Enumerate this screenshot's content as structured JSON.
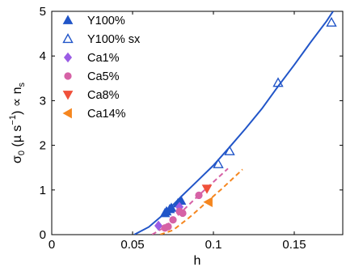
{
  "chart_data": {
    "type": "scatter",
    "xlabel": "h",
    "ylabel_parts": {
      "sigma": "σ",
      "sub0": "0",
      "open": " (µ s",
      "supneg": "−1",
      "close": ") ∝ n",
      "subs": "s"
    },
    "xlim": [
      0,
      0.18
    ],
    "ylim": [
      0,
      5
    ],
    "x_ticks": [
      0,
      0.05,
      0.1,
      0.15
    ],
    "x_tick_labels": [
      "0",
      "0.05",
      "0.1",
      "0.15"
    ],
    "y_ticks": [
      0,
      1,
      2,
      3,
      4,
      5
    ],
    "y_tick_labels": [
      "0",
      "1",
      "2",
      "3",
      "4",
      "5"
    ],
    "grid": false,
    "legend_position": "top-left",
    "legend": [
      {
        "label": "Y100%",
        "color": "#2155c8",
        "marker": "triangle-up-filled"
      },
      {
        "label": "Y100% sx",
        "color": "#2155c8",
        "marker": "triangle-up-open"
      },
      {
        "label": "Ca1%",
        "color": "#9b5de5",
        "marker": "diamond-filled"
      },
      {
        "label": "Ca5%",
        "color": "#d662a6",
        "marker": "circle-filled"
      },
      {
        "label": "Ca8%",
        "color": "#f0513a",
        "marker": "triangle-down-filled"
      },
      {
        "label": "Ca14%",
        "color": "#f5861f",
        "marker": "triangle-left-filled"
      }
    ],
    "series": [
      {
        "name": "Y100%",
        "color": "#2155c8",
        "marker": "triangle-up-filled",
        "points": [
          [
            0.07,
            0.48
          ],
          [
            0.071,
            0.52
          ],
          [
            0.073,
            0.57
          ],
          [
            0.074,
            0.6
          ],
          [
            0.078,
            0.7
          ],
          [
            0.08,
            0.76
          ]
        ]
      },
      {
        "name": "Y100% sx",
        "color": "#2155c8",
        "marker": "triangle-up-open",
        "points": [
          [
            0.103,
            1.58
          ],
          [
            0.11,
            1.87
          ],
          [
            0.14,
            3.4
          ],
          [
            0.173,
            4.75
          ]
        ]
      },
      {
        "name": "Ca1%",
        "color": "#9b5de5",
        "marker": "diamond-filled",
        "points": [
          [
            0.066,
            0.2
          ],
          [
            0.079,
            0.62
          ]
        ]
      },
      {
        "name": "Ca5%",
        "color": "#d662a6",
        "marker": "circle-filled",
        "points": [
          [
            0.07,
            0.15
          ],
          [
            0.072,
            0.18
          ],
          [
            0.075,
            0.33
          ],
          [
            0.079,
            0.52
          ],
          [
            0.081,
            0.48
          ],
          [
            0.091,
            0.88
          ]
        ]
      },
      {
        "name": "Ca8%",
        "color": "#f0513a",
        "marker": "triangle-down-filled",
        "points": [
          [
            0.096,
            1.03
          ]
        ]
      },
      {
        "name": "Ca14%",
        "color": "#f5861f",
        "marker": "triangle-left-filled",
        "points": [
          [
            0.097,
            0.73
          ]
        ]
      }
    ],
    "fits": [
      {
        "color": "#2155c8",
        "style": "solid",
        "points": [
          [
            0.051,
            0.0
          ],
          [
            0.06,
            0.17
          ],
          [
            0.07,
            0.48
          ],
          [
            0.08,
            0.85
          ],
          [
            0.09,
            1.2
          ],
          [
            0.1,
            1.55
          ],
          [
            0.11,
            1.96
          ],
          [
            0.12,
            2.38
          ],
          [
            0.13,
            2.82
          ],
          [
            0.14,
            3.32
          ],
          [
            0.15,
            3.8
          ],
          [
            0.16,
            4.3
          ],
          [
            0.17,
            4.78
          ],
          [
            0.174,
            5.0
          ]
        ]
      },
      {
        "color": "#d662a6",
        "style": "dashed",
        "points": [
          [
            0.062,
            0.0
          ],
          [
            0.07,
            0.17
          ],
          [
            0.08,
            0.5
          ],
          [
            0.09,
            0.85
          ],
          [
            0.1,
            1.18
          ],
          [
            0.109,
            1.48
          ]
        ]
      },
      {
        "color": "#f5861f",
        "style": "dashed",
        "points": [
          [
            0.067,
            0.0
          ],
          [
            0.075,
            0.1
          ],
          [
            0.085,
            0.38
          ],
          [
            0.095,
            0.7
          ],
          [
            0.105,
            1.02
          ],
          [
            0.118,
            1.46
          ]
        ]
      }
    ]
  }
}
